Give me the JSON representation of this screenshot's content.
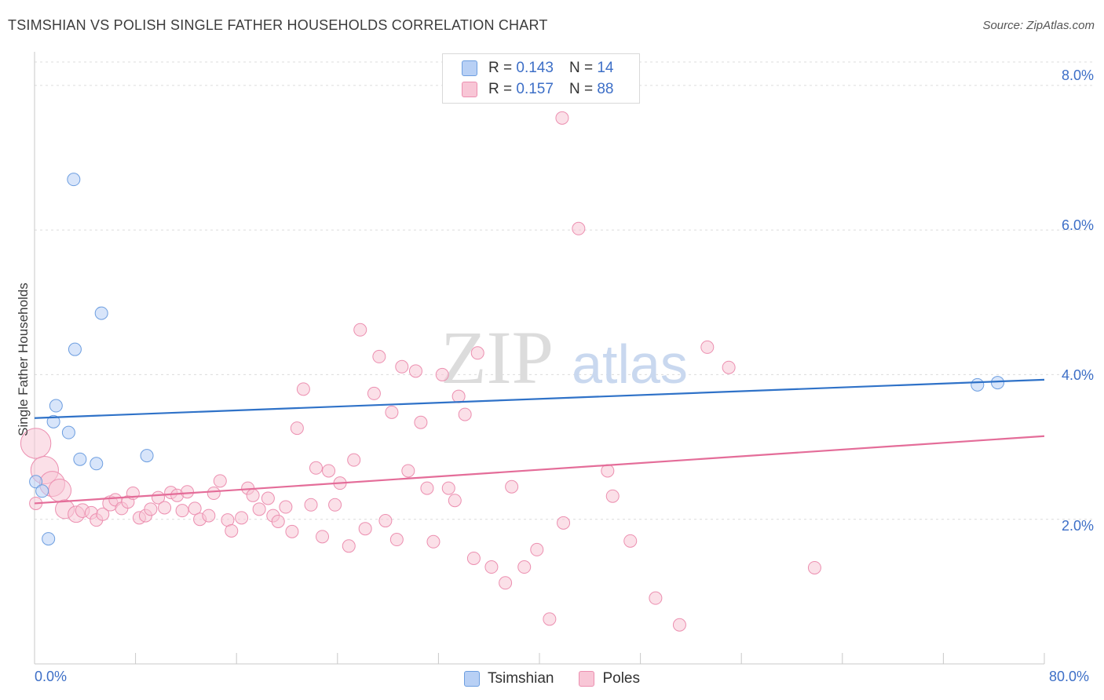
{
  "header": {
    "title": "TSIMSHIAN VS POLISH SINGLE FATHER HOUSEHOLDS CORRELATION CHART",
    "source": "Source: ZipAtlas.com"
  },
  "colors": {
    "tsimshian_fill": "#b8d0f5",
    "tsimshian_stroke": "#6d9ee0",
    "tsimshian_line": "#2f72c8",
    "poles_fill": "#f8c6d6",
    "poles_stroke": "#ec8fb0",
    "poles_line": "#e46d99",
    "tick_text": "#3d6fc7",
    "grid": "#dcdcdc"
  },
  "legend": {
    "tsimshian": {
      "r_label": "R =",
      "r_value": "0.143",
      "n_label": "N =",
      "n_value": "14"
    },
    "poles": {
      "r_label": "R =",
      "r_value": "0.157",
      "n_label": "N =",
      "n_value": "88"
    }
  },
  "watermark": {
    "zip": "ZIP",
    "atlas": "atlas"
  },
  "chart_data": {
    "type": "scatter",
    "title": "TSIMSHIAN VS POLISH SINGLE FATHER HOUSEHOLDS CORRELATION CHART",
    "xlabel": "",
    "ylabel": "Single Father Households",
    "xlim": [
      0,
      80
    ],
    "ylim": [
      0,
      8.4
    ],
    "x_tick_labels": [
      "0.0%",
      "80.0%"
    ],
    "y_ticks": [
      2,
      4,
      6,
      8
    ],
    "y_tick_labels": [
      "2.0%",
      "4.0%",
      "6.0%",
      "8.0%"
    ],
    "grid": "horizontal dashed",
    "legend_position": "bottom-center",
    "series": [
      {
        "name": "Tsimshian",
        "r": 0.143,
        "n": 14,
        "trend": {
          "x": [
            0,
            80
          ],
          "y": [
            3.4,
            3.93
          ]
        },
        "points": [
          {
            "x": 0.1,
            "y": 2.52,
            "s": 1
          },
          {
            "x": 0.6,
            "y": 2.39,
            "s": 1
          },
          {
            "x": 1.1,
            "y": 1.73,
            "s": 1
          },
          {
            "x": 1.5,
            "y": 3.35,
            "s": 1
          },
          {
            "x": 1.7,
            "y": 3.57,
            "s": 1
          },
          {
            "x": 2.7,
            "y": 3.2,
            "s": 1
          },
          {
            "x": 3.1,
            "y": 6.7,
            "s": 1
          },
          {
            "x": 3.2,
            "y": 4.35,
            "s": 1
          },
          {
            "x": 3.6,
            "y": 2.83,
            "s": 1
          },
          {
            "x": 4.9,
            "y": 2.77,
            "s": 1
          },
          {
            "x": 5.3,
            "y": 4.85,
            "s": 1
          },
          {
            "x": 8.9,
            "y": 2.88,
            "s": 1
          },
          {
            "x": 74.7,
            "y": 3.86,
            "s": 1
          },
          {
            "x": 76.3,
            "y": 3.89,
            "s": 1
          }
        ]
      },
      {
        "name": "Poles",
        "r": 0.157,
        "n": 88,
        "trend": {
          "x": [
            0,
            80
          ],
          "y": [
            2.22,
            3.15
          ]
        },
        "points": [
          {
            "x": 0.1,
            "y": 3.05,
            "s": 2.4
          },
          {
            "x": 0.8,
            "y": 2.68,
            "s": 2.2
          },
          {
            "x": 1.4,
            "y": 2.49,
            "s": 2
          },
          {
            "x": 2.0,
            "y": 2.4,
            "s": 1.8
          },
          {
            "x": 2.4,
            "y": 2.14,
            "s": 1.5
          },
          {
            "x": 3.3,
            "y": 2.07,
            "s": 1.3
          },
          {
            "x": 3.8,
            "y": 2.12,
            "s": 1.1
          },
          {
            "x": 4.5,
            "y": 2.09,
            "s": 1
          },
          {
            "x": 4.9,
            "y": 1.99,
            "s": 1
          },
          {
            "x": 5.4,
            "y": 2.07,
            "s": 1
          },
          {
            "x": 6.0,
            "y": 2.22,
            "s": 1.2
          },
          {
            "x": 6.4,
            "y": 2.27,
            "s": 1
          },
          {
            "x": 6.9,
            "y": 2.15,
            "s": 1
          },
          {
            "x": 7.4,
            "y": 2.24,
            "s": 1
          },
          {
            "x": 7.8,
            "y": 2.36,
            "s": 1
          },
          {
            "x": 8.3,
            "y": 2.02,
            "s": 1
          },
          {
            "x": 8.8,
            "y": 2.05,
            "s": 1
          },
          {
            "x": 9.2,
            "y": 2.14,
            "s": 1
          },
          {
            "x": 9.8,
            "y": 2.3,
            "s": 1
          },
          {
            "x": 10.3,
            "y": 2.16,
            "s": 1
          },
          {
            "x": 10.8,
            "y": 2.37,
            "s": 1
          },
          {
            "x": 11.3,
            "y": 2.33,
            "s": 1
          },
          {
            "x": 11.7,
            "y": 2.12,
            "s": 1
          },
          {
            "x": 12.1,
            "y": 2.38,
            "s": 1
          },
          {
            "x": 12.7,
            "y": 2.15,
            "s": 1
          },
          {
            "x": 13.1,
            "y": 2.0,
            "s": 1
          },
          {
            "x": 13.8,
            "y": 2.05,
            "s": 1
          },
          {
            "x": 14.2,
            "y": 2.36,
            "s": 1
          },
          {
            "x": 14.7,
            "y": 2.53,
            "s": 1
          },
          {
            "x": 15.3,
            "y": 1.99,
            "s": 1
          },
          {
            "x": 15.6,
            "y": 1.84,
            "s": 1
          },
          {
            "x": 16.4,
            "y": 2.02,
            "s": 1
          },
          {
            "x": 16.9,
            "y": 2.43,
            "s": 1
          },
          {
            "x": 17.3,
            "y": 2.33,
            "s": 1
          },
          {
            "x": 17.8,
            "y": 2.14,
            "s": 1
          },
          {
            "x": 18.5,
            "y": 2.29,
            "s": 1
          },
          {
            "x": 18.9,
            "y": 2.05,
            "s": 1
          },
          {
            "x": 19.3,
            "y": 1.97,
            "s": 1
          },
          {
            "x": 19.9,
            "y": 2.17,
            "s": 1
          },
          {
            "x": 20.4,
            "y": 1.83,
            "s": 1
          },
          {
            "x": 20.8,
            "y": 3.26,
            "s": 1
          },
          {
            "x": 21.3,
            "y": 3.8,
            "s": 1
          },
          {
            "x": 21.9,
            "y": 2.2,
            "s": 1
          },
          {
            "x": 22.3,
            "y": 2.71,
            "s": 1
          },
          {
            "x": 22.8,
            "y": 1.76,
            "s": 1
          },
          {
            "x": 23.3,
            "y": 2.67,
            "s": 1
          },
          {
            "x": 23.8,
            "y": 2.2,
            "s": 1
          },
          {
            "x": 24.2,
            "y": 2.5,
            "s": 1
          },
          {
            "x": 24.9,
            "y": 1.63,
            "s": 1
          },
          {
            "x": 25.3,
            "y": 2.82,
            "s": 1
          },
          {
            "x": 25.8,
            "y": 4.62,
            "s": 1
          },
          {
            "x": 26.2,
            "y": 1.87,
            "s": 1
          },
          {
            "x": 26.9,
            "y": 3.74,
            "s": 1
          },
          {
            "x": 27.3,
            "y": 4.25,
            "s": 1
          },
          {
            "x": 27.8,
            "y": 1.98,
            "s": 1
          },
          {
            "x": 28.3,
            "y": 3.48,
            "s": 1
          },
          {
            "x": 28.7,
            "y": 1.72,
            "s": 1
          },
          {
            "x": 29.1,
            "y": 4.11,
            "s": 1
          },
          {
            "x": 29.6,
            "y": 2.67,
            "s": 1
          },
          {
            "x": 30.2,
            "y": 4.05,
            "s": 1
          },
          {
            "x": 30.6,
            "y": 3.34,
            "s": 1
          },
          {
            "x": 31.1,
            "y": 2.43,
            "s": 1
          },
          {
            "x": 31.6,
            "y": 1.69,
            "s": 1
          },
          {
            "x": 32.3,
            "y": 4.0,
            "s": 1
          },
          {
            "x": 32.8,
            "y": 2.43,
            "s": 1
          },
          {
            "x": 33.3,
            "y": 2.26,
            "s": 1
          },
          {
            "x": 33.6,
            "y": 3.7,
            "s": 1
          },
          {
            "x": 34.1,
            "y": 3.45,
            "s": 1
          },
          {
            "x": 34.8,
            "y": 1.46,
            "s": 1
          },
          {
            "x": 35.1,
            "y": 4.3,
            "s": 1
          },
          {
            "x": 36.2,
            "y": 1.34,
            "s": 1
          },
          {
            "x": 37.3,
            "y": 1.12,
            "s": 1
          },
          {
            "x": 37.8,
            "y": 2.45,
            "s": 1
          },
          {
            "x": 38.8,
            "y": 1.34,
            "s": 1
          },
          {
            "x": 39.8,
            "y": 1.58,
            "s": 1
          },
          {
            "x": 40.8,
            "y": 0.62,
            "s": 1
          },
          {
            "x": 41.8,
            "y": 7.55,
            "s": 1
          },
          {
            "x": 41.9,
            "y": 1.95,
            "s": 1
          },
          {
            "x": 43.1,
            "y": 6.02,
            "s": 1
          },
          {
            "x": 45.4,
            "y": 2.67,
            "s": 1
          },
          {
            "x": 45.8,
            "y": 2.32,
            "s": 1
          },
          {
            "x": 47.2,
            "y": 1.7,
            "s": 1
          },
          {
            "x": 49.2,
            "y": 0.91,
            "s": 1
          },
          {
            "x": 51.1,
            "y": 0.54,
            "s": 1
          },
          {
            "x": 53.3,
            "y": 4.38,
            "s": 1
          },
          {
            "x": 55.0,
            "y": 4.1,
            "s": 1
          },
          {
            "x": 61.8,
            "y": 1.33,
            "s": 1
          },
          {
            "x": 0.1,
            "y": 2.22,
            "s": 1
          }
        ]
      }
    ]
  }
}
